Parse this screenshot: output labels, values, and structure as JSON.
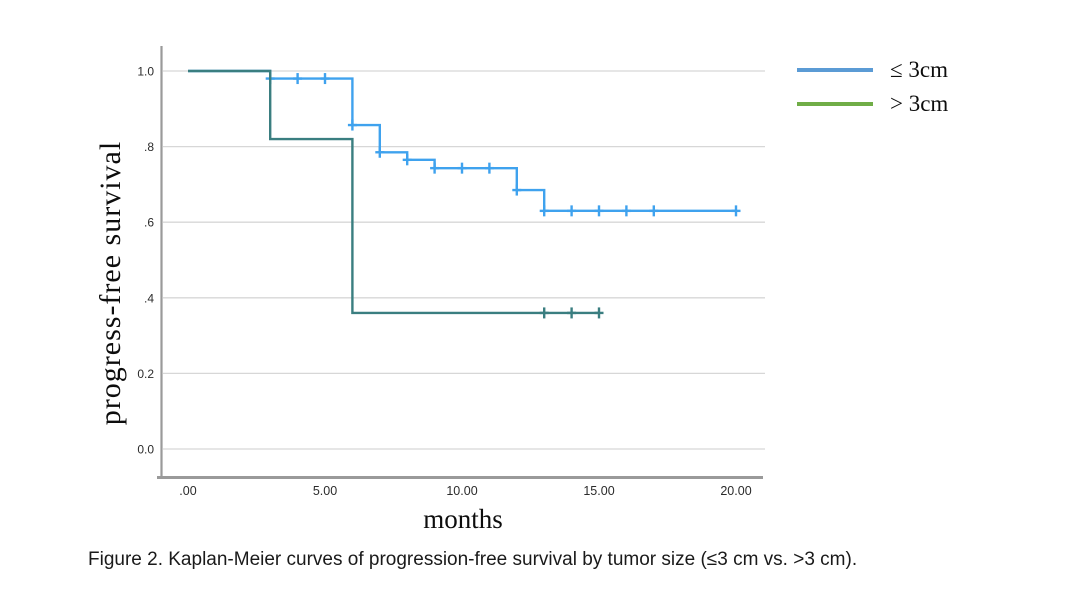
{
  "figure": {
    "caption": "Figure 2. Kaplan-Meier curves of progression-free survival by tumor size (≤3 cm vs. >3 cm)."
  },
  "chart_data": {
    "type": "line",
    "subtype": "kaplan-meier-step",
    "title": "",
    "xlabel": "months",
    "ylabel": "progress-free survival",
    "xlim": [
      0,
      20
    ],
    "ylim": [
      0.0,
      1.0
    ],
    "grid": true,
    "legend_position": "outside-top-right",
    "x_ticks": [
      {
        "value": 0,
        "label": ".00"
      },
      {
        "value": 5,
        "label": "5.00"
      },
      {
        "value": 10,
        "label": "10.00"
      },
      {
        "value": 15,
        "label": "15.00"
      },
      {
        "value": 20,
        "label": "20.00"
      }
    ],
    "y_ticks": [
      {
        "value": 1.0,
        "label": "1.0"
      },
      {
        "value": 0.8,
        "label": ".8"
      },
      {
        "value": 0.6,
        "label": ".6"
      },
      {
        "value": 0.4,
        "label": ".4"
      },
      {
        "value": 0.2,
        "label": "0.2"
      },
      {
        "value": 0.0,
        "label": "0.0"
      }
    ],
    "series": [
      {
        "name": "≤ 3cm",
        "legend_color": "#5b9bd5",
        "line_color": "#3fa2ee",
        "steps": [
          [
            0,
            1.0
          ],
          [
            3,
            0.98
          ],
          [
            6,
            0.857
          ],
          [
            7,
            0.785
          ],
          [
            8,
            0.765
          ],
          [
            9,
            0.743
          ],
          [
            12,
            0.685
          ],
          [
            13,
            0.63
          ],
          [
            20,
            0.63
          ]
        ],
        "censor_marks": [
          [
            3,
            0.98
          ],
          [
            4,
            0.98
          ],
          [
            5,
            0.98
          ],
          [
            6,
            0.857
          ],
          [
            7,
            0.785
          ],
          [
            8,
            0.765
          ],
          [
            9,
            0.743
          ],
          [
            10,
            0.743
          ],
          [
            11,
            0.743
          ],
          [
            12,
            0.685
          ],
          [
            13,
            0.63
          ],
          [
            14,
            0.63
          ],
          [
            15,
            0.63
          ],
          [
            16,
            0.63
          ],
          [
            17,
            0.63
          ],
          [
            20,
            0.63
          ]
        ]
      },
      {
        "name": "> 3cm",
        "legend_color": "#70ad47",
        "line_color": "#3a7e80",
        "steps": [
          [
            0,
            1.0
          ],
          [
            3,
            0.82
          ],
          [
            6,
            0.36
          ],
          [
            15,
            0.36
          ]
        ],
        "censor_marks": [
          [
            13,
            0.36
          ],
          [
            14,
            0.36
          ],
          [
            15,
            0.36
          ]
        ]
      }
    ]
  }
}
